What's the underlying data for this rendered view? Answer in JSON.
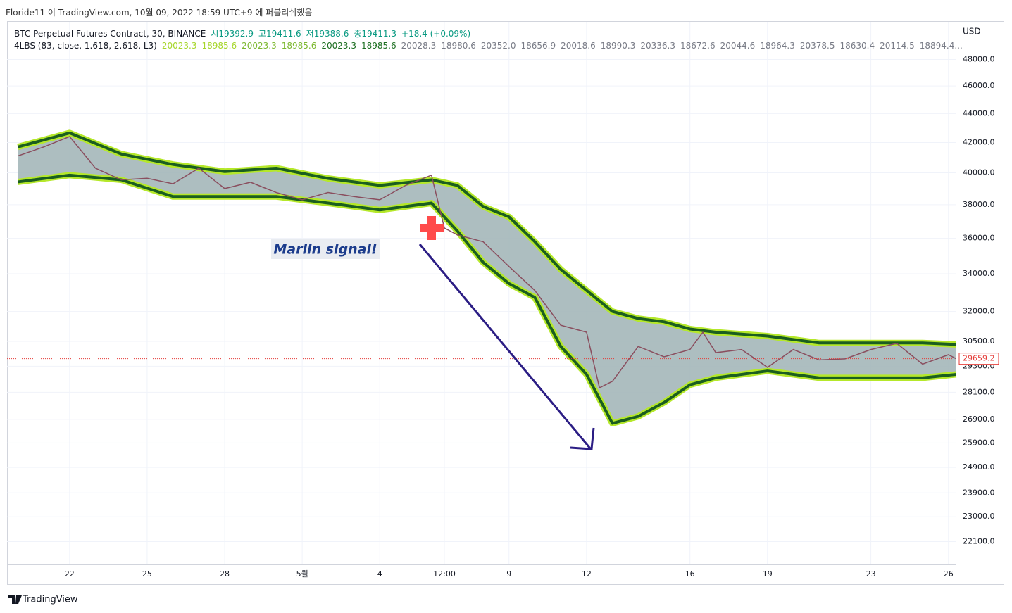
{
  "page": {
    "publish_note": "Floride11 이 TradingView.com, 10월 09, 2022 18:59 UTC+9 에 퍼블리쉬했음",
    "brand": "TradingView"
  },
  "chart_data": {
    "type": "line",
    "symbol": "BTC Perpetual Futures Contract, 30, BINANCE",
    "ohlc": [
      "시19392.9",
      "고19411.6",
      "저19388.6",
      "종19411.3",
      "+18.4 (+0.09%)"
    ],
    "indicator": "4LBS (83, close, 1.618, 2.618, L3)",
    "indicator_values": [
      "20023.3",
      "18985.6",
      "20023.3",
      "18985.6",
      "20023.3",
      "18985.6",
      "20028.3",
      "18980.6",
      "20352.0",
      "18656.9",
      "20018.6",
      "18990.3",
      "20336.3",
      "18672.6",
      "20044.6",
      "18964.3",
      "20378.5",
      "18630.4",
      "20114.5",
      "18894.4..."
    ],
    "indicator_colors": [
      "#a6d62a",
      "#a6d62a",
      "#7cb82f",
      "#7cb82f",
      "#1b6e20",
      "#1b6e20"
    ],
    "axis_unit": "USD",
    "annotation": "Marlin signal!",
    "x": [
      -2,
      -1,
      0,
      1,
      2,
      3,
      4,
      5,
      6,
      7,
      8,
      9,
      10,
      11,
      12,
      13,
      14,
      14.5,
      15,
      16,
      17,
      18,
      19,
      20,
      20.5,
      21,
      22,
      23,
      24,
      24.5,
      25,
      26,
      27,
      28,
      29,
      30,
      31,
      32,
      33,
      34,
      34.3
    ],
    "values": [
      41100,
      41700,
      42400,
      40300,
      39550,
      39650,
      39300,
      40300,
      39000,
      39400,
      38750,
      38300,
      38750,
      38500,
      38300,
      39200,
      39850,
      36600,
      36200,
      35800,
      34400,
      33100,
      31300,
      30950,
      28300,
      28600,
      30250,
      29750,
      30100,
      30950,
      29950,
      30100,
      29250,
      30100,
      29600,
      29650,
      30100,
      30400,
      29400,
      29850,
      29659.2
    ],
    "color": "#8a4e5e",
    "band_x": [
      -2,
      0,
      2,
      4,
      6,
      8,
      10,
      12,
      14,
      15,
      16,
      17,
      18,
      19,
      20,
      21,
      22,
      23,
      24,
      25,
      27,
      29,
      31,
      33,
      34.3
    ],
    "band_upper": [
      41700,
      42650,
      41230,
      40540,
      40080,
      40300,
      39640,
      39200,
      39550,
      39200,
      37890,
      37260,
      35800,
      34240,
      33100,
      32000,
      31640,
      31470,
      31110,
      30950,
      30760,
      30420,
      30420,
      30420,
      30350
    ],
    "band_lower": [
      39420,
      39850,
      39550,
      38500,
      38500,
      38500,
      38100,
      37680,
      38100,
      36430,
      34630,
      33470,
      32730,
      30250,
      28920,
      26730,
      27030,
      27640,
      28440,
      28760,
      29080,
      28760,
      28760,
      28760,
      28920
    ],
    "band_color": "#1b5e20",
    "band_glow": "#b5e82a",
    "band_fill": "#9fb3b5",
    "last_price": 29659.2,
    "last_price_color": "#e53935",
    "log_scale": true,
    "xlim": [
      -2.42,
      34.28
    ],
    "ylim": [
      21300,
      51000
    ],
    "xticks": [
      {
        "value": 0,
        "label": "22"
      },
      {
        "value": 3,
        "label": "25"
      },
      {
        "value": 6,
        "label": "28"
      },
      {
        "value": 9,
        "label": "5월"
      },
      {
        "value": 12,
        "label": "4"
      },
      {
        "value": 14.5,
        "label": "12:00"
      },
      {
        "value": 17,
        "label": "9"
      },
      {
        "value": 20,
        "label": "12"
      },
      {
        "value": 24,
        "label": "16"
      },
      {
        "value": 27,
        "label": "19"
      },
      {
        "value": 31,
        "label": "23"
      },
      {
        "value": 34,
        "label": "26"
      }
    ],
    "yticks": [
      {
        "value": 48000,
        "label": "48000.0"
      },
      {
        "value": 46000,
        "label": "46000.0"
      },
      {
        "value": 44000,
        "label": "44000.0"
      },
      {
        "value": 42000,
        "label": "42000.0"
      },
      {
        "value": 40000,
        "label": "40000.0"
      },
      {
        "value": 38000,
        "label": "38000.0"
      },
      {
        "value": 36000,
        "label": "36000.0"
      },
      {
        "value": 34000,
        "label": "34000.0"
      },
      {
        "value": 32000,
        "label": "32000.0"
      },
      {
        "value": 30500,
        "label": "30500.0"
      },
      {
        "value": 29300,
        "label": "29300.0"
      },
      {
        "value": 28100,
        "label": "28100.0"
      },
      {
        "value": 26900,
        "label": "26900.0"
      },
      {
        "value": 25900,
        "label": "25900.0"
      },
      {
        "value": 24900,
        "label": "24900.0"
      },
      {
        "value": 23900,
        "label": "23900.0"
      },
      {
        "value": 23000,
        "label": "23000.0"
      },
      {
        "value": 22100,
        "label": "22100.0"
      }
    ],
    "grid": true
  }
}
